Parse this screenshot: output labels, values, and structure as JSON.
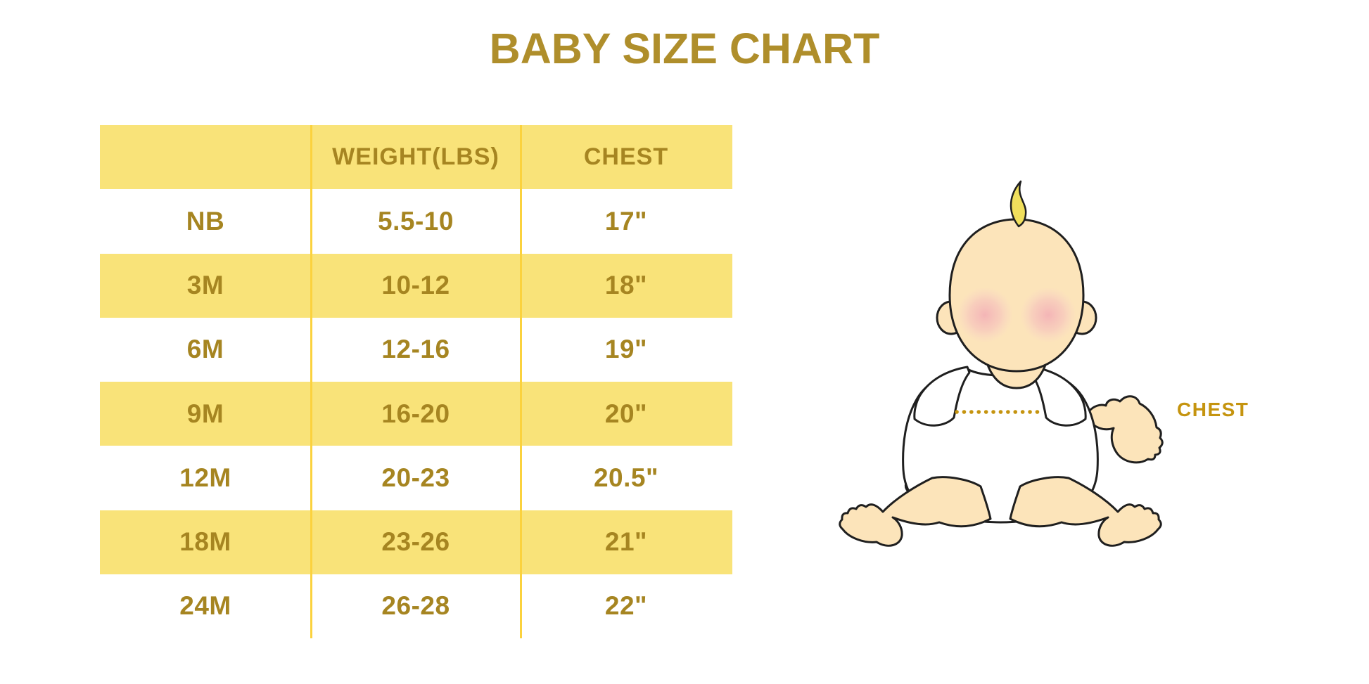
{
  "title": "BABY SIZE CHART",
  "chart_data": {
    "type": "table",
    "title": "BABY SIZE CHART",
    "columns": [
      "",
      "WEIGHT(LBS)",
      "CHEST"
    ],
    "rows": [
      [
        "NB",
        "5.5-10",
        "17\""
      ],
      [
        "3M",
        "10-12",
        "18\""
      ],
      [
        "6M",
        "12-16",
        "19\""
      ],
      [
        "9M",
        "16-20",
        "20\""
      ],
      [
        "12M",
        "20-23",
        "20.5\""
      ],
      [
        "18M",
        "23-26",
        "21\""
      ],
      [
        "24M",
        "26-28",
        "22\""
      ]
    ],
    "layout": {
      "header_highlighted": true,
      "highlighted_rows": [
        "3M",
        "9M",
        "18M"
      ],
      "grid": "two vertical column dividers only",
      "legend_position": "none"
    }
  },
  "illustration": {
    "label": "CHEST",
    "description": "cartoon baby sitting with a dotted measurement line across the chest"
  },
  "colors": {
    "background": "#FFFFFF",
    "title_text": "#AF8E2B",
    "table_text": "#A68521",
    "row_highlight": "#F9E379",
    "column_divider": "#FBD23E",
    "chest_label": "#C5940F",
    "dotted_line": "#C5940F",
    "baby_skin": "#FCE4BA",
    "baby_hair": "#F0DF5C",
    "baby_cheek": "#F2A9B5",
    "baby_outline": "#1F1F1F",
    "baby_shirt": "#FFFFFF"
  }
}
